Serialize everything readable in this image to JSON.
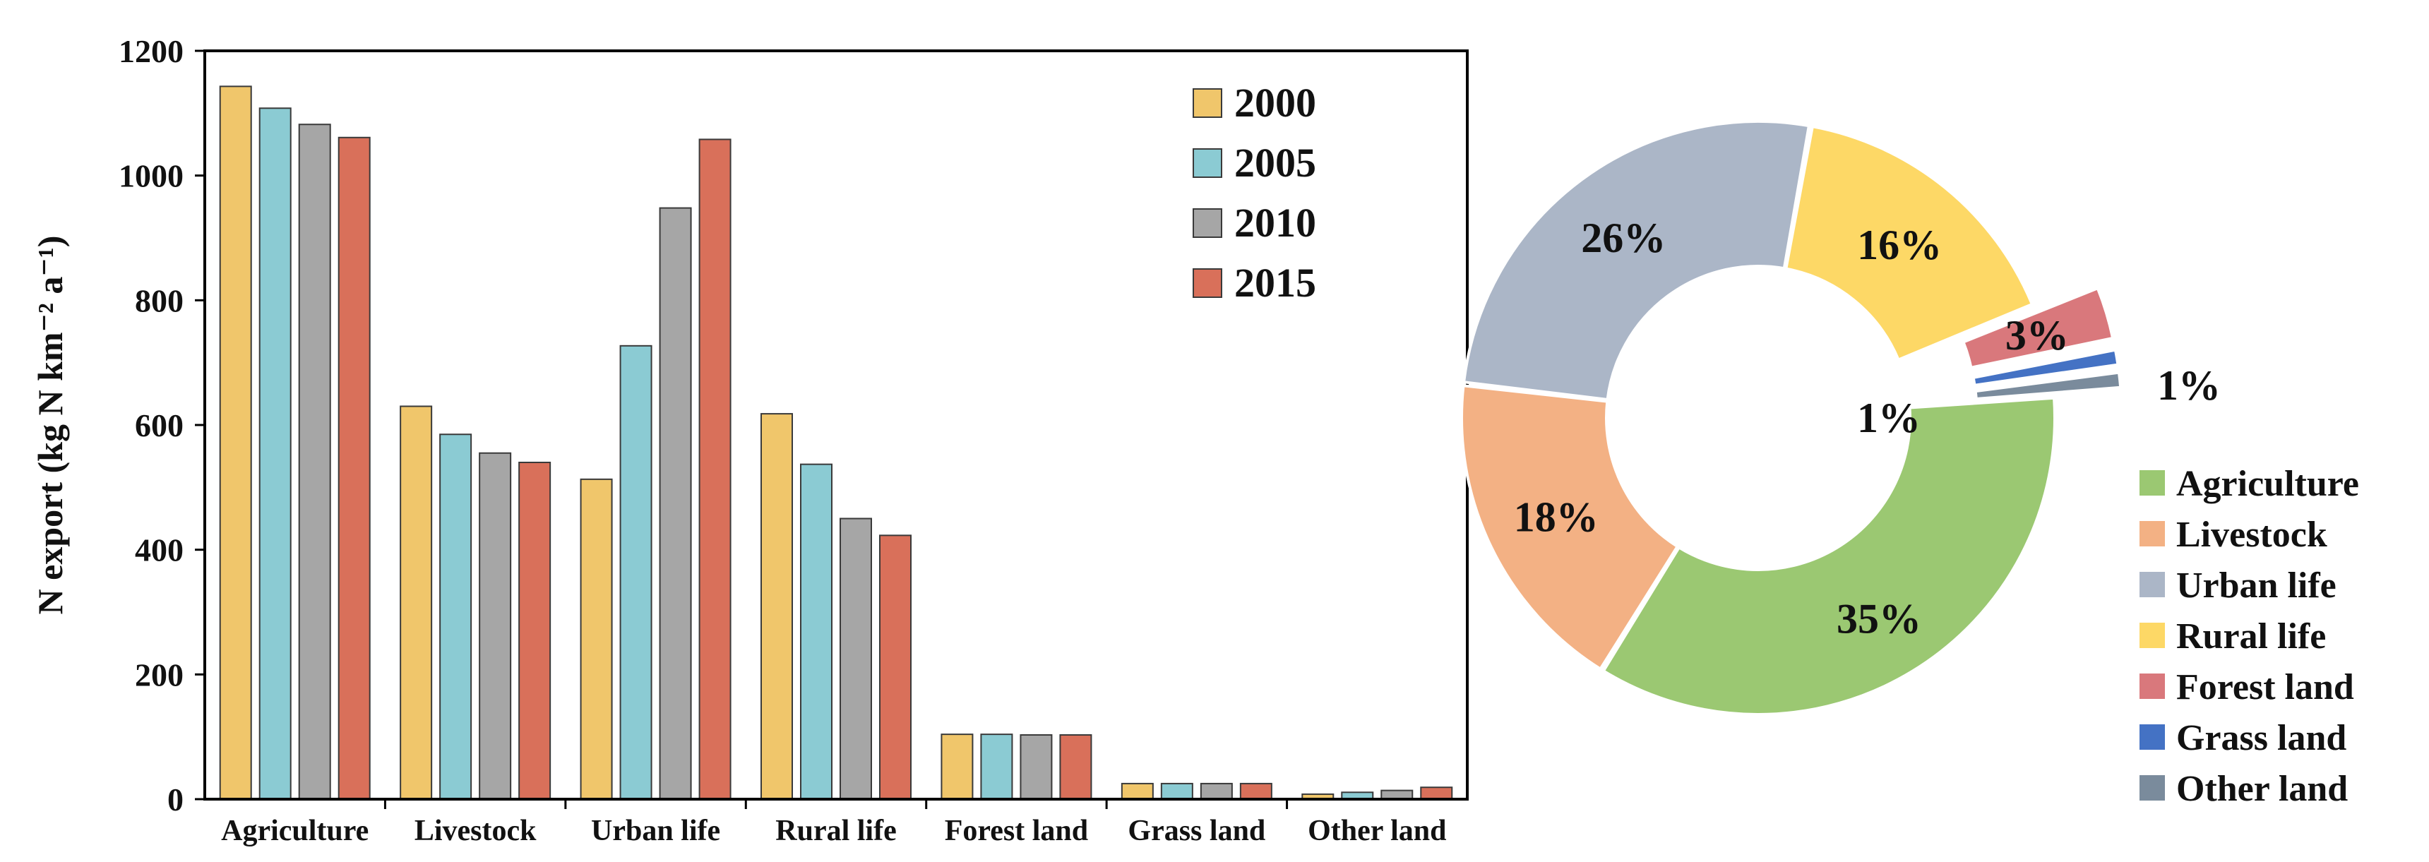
{
  "chart_data": [
    {
      "type": "bar",
      "categories": [
        "Agriculture",
        "Livestock",
        "Urban life",
        "Rural life",
        "Forest land",
        "Grass land",
        "Other land"
      ],
      "series": [
        {
          "name": "2000",
          "color": "#F0C66B",
          "values": [
            1143,
            630,
            513,
            618,
            104,
            25,
            8
          ]
        },
        {
          "name": "2005",
          "color": "#8BCBD3",
          "values": [
            1108,
            585,
            727,
            537,
            104,
            25,
            11
          ]
        },
        {
          "name": "2010",
          "color": "#A6A6A6",
          "values": [
            1082,
            555,
            948,
            450,
            103,
            25,
            14
          ]
        },
        {
          "name": "2015",
          "color": "#D9705A",
          "values": [
            1061,
            540,
            1058,
            423,
            103,
            25,
            19
          ]
        }
      ],
      "title": "",
      "xlabel": "",
      "ylabel": "N export (kg N km⁻² a⁻¹)",
      "ylim": [
        0,
        1200
      ],
      "yticks": [
        "0",
        "200",
        "400",
        "600",
        "800",
        "1000",
        "1200"
      ],
      "legend_position": "top-right"
    },
    {
      "type": "pie",
      "style": "donut",
      "slices": [
        {
          "name": "Agriculture",
          "value": 35,
          "label": "35%",
          "color": "#9BC872"
        },
        {
          "name": "Livestock",
          "value": 18,
          "label": "18%",
          "color": "#F3B184"
        },
        {
          "name": "Urban life",
          "value": 26,
          "label": "26%",
          "color": "#ABB6C7"
        },
        {
          "name": "Rural life",
          "value": 16,
          "label": "16%",
          "color": "#FDD866"
        },
        {
          "name": "Forest land",
          "value": 3,
          "label": "3%",
          "color": "#D9787C"
        },
        {
          "name": "Grass land",
          "value": 1,
          "label": "1%",
          "color": "#4472C4"
        },
        {
          "name": "Other land",
          "value": 1,
          "label": "1%",
          "color": "#7A8B9C"
        }
      ],
      "legend_position": "right"
    }
  ]
}
